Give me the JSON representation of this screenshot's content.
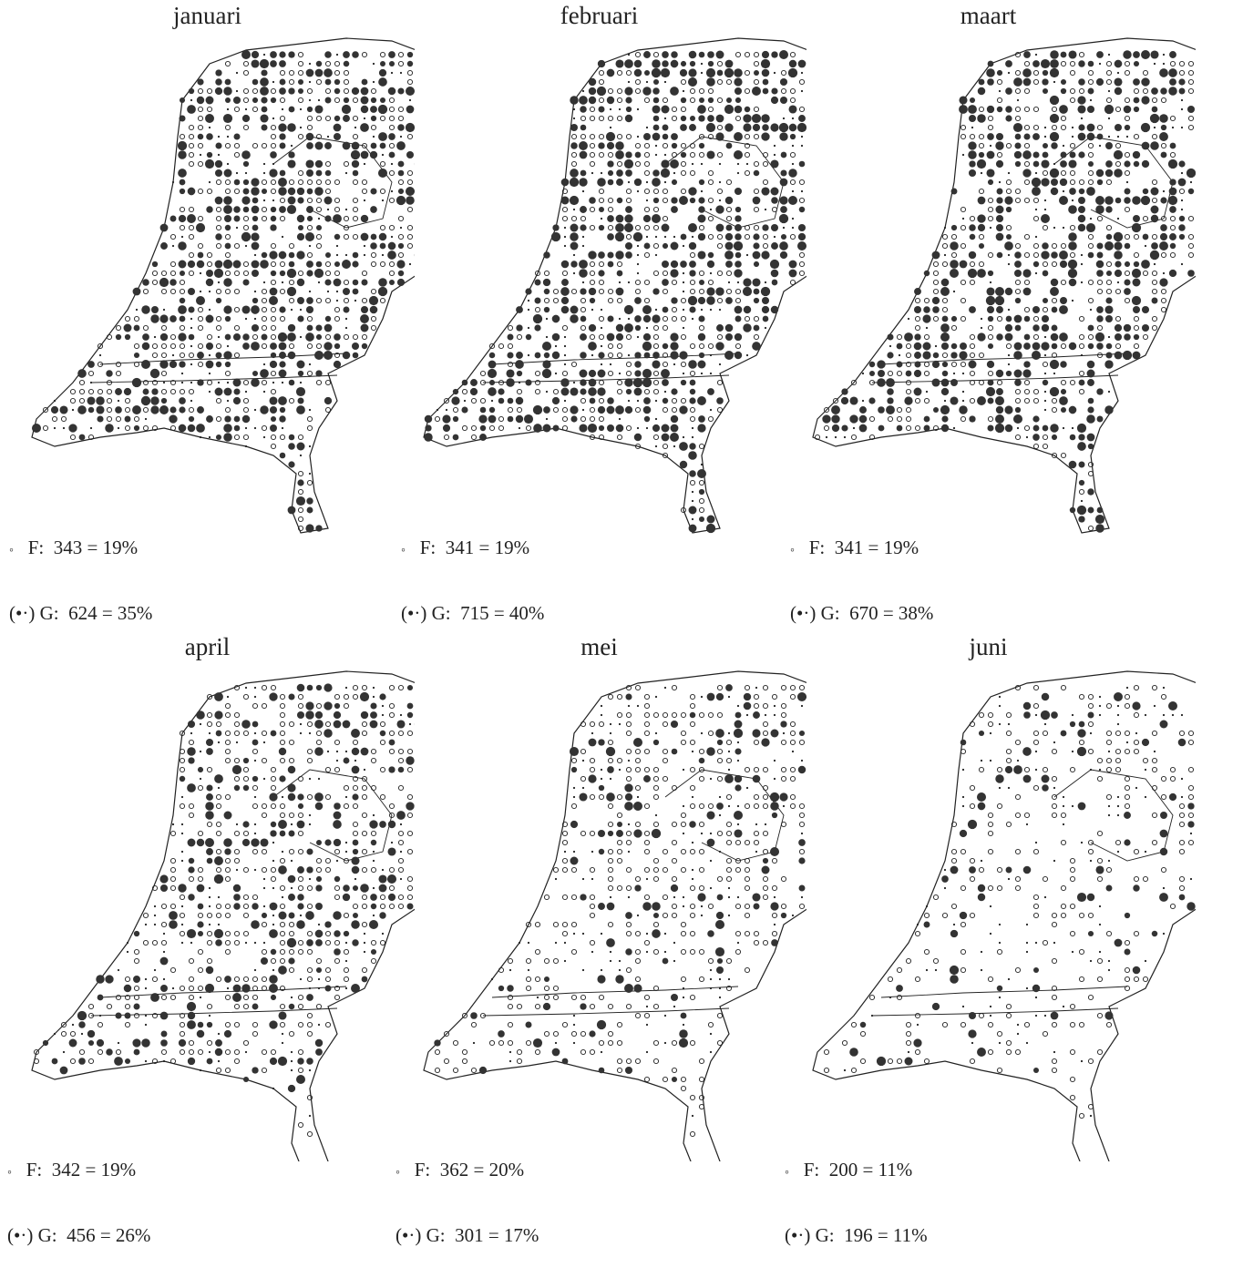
{
  "panels": [
    {
      "title": "januari",
      "f_label": "F:",
      "f_value": "343 = 19%",
      "g_label": "G:",
      "g_value": "624 = 35%"
    },
    {
      "title": "februari",
      "f_label": "F:",
      "f_value": "341 = 19%",
      "g_label": "G:",
      "g_value": "715 = 40%"
    },
    {
      "title": "maart",
      "f_label": "F:",
      "f_value": "341 = 19%",
      "g_label": "G:",
      "g_value": "670 = 38%"
    },
    {
      "title": "april",
      "f_label": "F:",
      "f_value": "342 = 19%",
      "g_label": "G:",
      "g_value": "456 = 26%"
    },
    {
      "title": "mei",
      "f_label": "F:",
      "f_value": "362 = 20%",
      "g_label": "G:",
      "g_value": "301 = 17%"
    },
    {
      "title": "juni",
      "f_label": "F:",
      "f_value": "200 = 11%",
      "g_label": "G:",
      "g_value": "196 = 11%"
    }
  ],
  "legend_symbols": {
    "f_symbol": "◦",
    "g_symbol": "(•·)"
  },
  "colors": {
    "ink": "#222222",
    "dense": "#333333",
    "background": "#ffffff"
  }
}
